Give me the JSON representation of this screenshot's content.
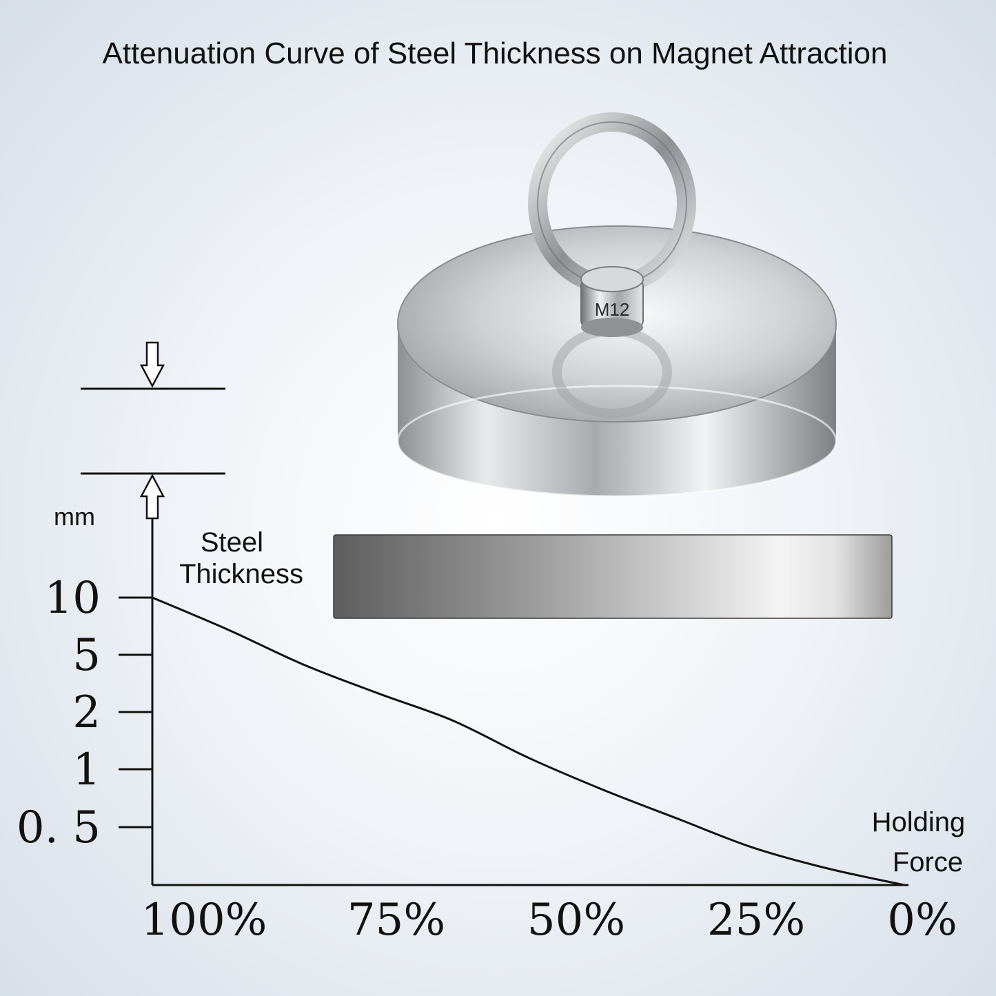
{
  "icons": {
    "magnet": "fishing-magnet-icon",
    "steel_plate": "steel-plate-icon",
    "arrow_down": "arrow-down-icon",
    "arrow_up": "arrow-up-icon"
  },
  "magnet_marking": "M12",
  "colors": {
    "line": "#111111",
    "background_center": "#ffffff",
    "background_edge": "#d6dee8",
    "plate_dark": "#5e5e5e",
    "plate_light": "#f4f4f4"
  },
  "chart_data": {
    "type": "line",
    "title": "Attenuation Curve of Steel Thickness on Magnet Attraction",
    "xlabel": "Holding Force",
    "ylabel": "Steel Thickness",
    "yunit": "mm",
    "x_ticks": [
      "100%",
      "75%",
      "50%",
      "25%",
      "0%"
    ],
    "y_ticks": [
      "0. 5",
      "1",
      "2",
      "5",
      "10"
    ],
    "y_tick_values": [
      0.5,
      1,
      2,
      5,
      10
    ],
    "y_scale": "categorical-ordinal",
    "xlim": [
      100,
      0
    ],
    "grid": false,
    "legend": "none",
    "series": [
      {
        "x": [
          100,
          90,
          80,
          70,
          60,
          50,
          40,
          30,
          20,
          10,
          0
        ],
        "y": [
          10,
          6.8,
          4.3,
          2.7,
          1.8,
          1.15,
          0.78,
          0.55,
          0.32,
          0.14,
          0
        ]
      }
    ]
  }
}
